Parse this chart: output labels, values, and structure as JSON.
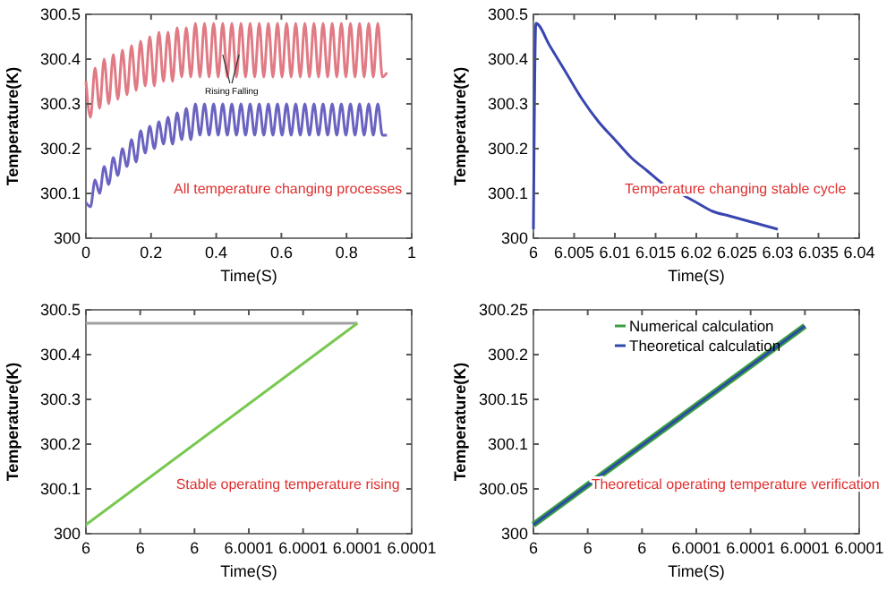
{
  "chart_data": [
    {
      "type": "line",
      "xlabel": "Time(S)",
      "ylabel": "Temperature(K)",
      "xlim": [
        0,
        1
      ],
      "ylim": [
        300,
        300.5
      ],
      "xticks": [
        0,
        0.2,
        0.4,
        0.6,
        0.8,
        1
      ],
      "yticks": [
        300,
        300.1,
        300.2,
        300.3,
        300.4,
        300.5
      ],
      "grid": false,
      "legend": false,
      "annotations": [
        {
          "text": "Rising",
          "x": 0.42,
          "y": 300.41
        },
        {
          "text": "Falling",
          "x": 0.47,
          "y": 300.41
        },
        "All temperature changing processes"
      ],
      "series": [
        {
          "color": "#e07a84",
          "x": [
            0,
            0.014,
            0.028,
            0.042,
            0.056,
            0.07,
            0.084,
            0.098,
            0.112,
            0.126,
            0.14,
            0.154,
            0.168,
            0.182,
            0.196,
            0.21,
            0.224,
            0.238,
            0.252,
            0.266,
            0.28,
            0.294,
            0.308,
            0.322,
            0.336,
            0.35,
            0.364,
            0.378,
            0.392,
            0.406,
            0.42,
            0.434,
            0.448,
            0.462,
            0.476,
            0.49,
            0.504,
            0.518,
            0.532,
            0.546,
            0.56,
            0.574,
            0.588,
            0.602,
            0.616,
            0.63,
            0.644,
            0.658,
            0.672,
            0.686,
            0.7,
            0.714,
            0.728,
            0.742,
            0.756,
            0.77,
            0.784,
            0.798,
            0.812,
            0.826,
            0.84,
            0.854,
            0.868,
            0.882,
            0.896,
            0.91,
            0.924
          ],
          "values": [
            300.35,
            300.27,
            300.38,
            300.29,
            300.4,
            300.3,
            300.41,
            300.31,
            300.42,
            300.32,
            300.43,
            300.33,
            300.44,
            300.34,
            300.45,
            300.34,
            300.46,
            300.35,
            300.46,
            300.35,
            300.47,
            300.36,
            300.47,
            300.36,
            300.48,
            300.36,
            300.48,
            300.36,
            300.48,
            300.36,
            300.48,
            300.36,
            300.48,
            300.36,
            300.48,
            300.36,
            300.48,
            300.36,
            300.48,
            300.36,
            300.48,
            300.36,
            300.48,
            300.36,
            300.48,
            300.36,
            300.48,
            300.36,
            300.48,
            300.36,
            300.48,
            300.36,
            300.48,
            300.36,
            300.48,
            300.36,
            300.48,
            300.36,
            300.48,
            300.36,
            300.48,
            300.36,
            300.48,
            300.36,
            300.48,
            300.36,
            300.37
          ]
        },
        {
          "color": "#6a64c0",
          "x": [
            0,
            0.014,
            0.028,
            0.042,
            0.056,
            0.07,
            0.084,
            0.098,
            0.112,
            0.126,
            0.14,
            0.154,
            0.168,
            0.182,
            0.196,
            0.21,
            0.224,
            0.238,
            0.252,
            0.266,
            0.28,
            0.294,
            0.308,
            0.322,
            0.336,
            0.35,
            0.364,
            0.378,
            0.392,
            0.406,
            0.42,
            0.434,
            0.448,
            0.462,
            0.476,
            0.49,
            0.504,
            0.518,
            0.532,
            0.546,
            0.56,
            0.574,
            0.588,
            0.602,
            0.616,
            0.63,
            0.644,
            0.658,
            0.672,
            0.686,
            0.7,
            0.714,
            0.728,
            0.742,
            0.756,
            0.77,
            0.784,
            0.798,
            0.812,
            0.826,
            0.84,
            0.854,
            0.868,
            0.882,
            0.896,
            0.91,
            0.924
          ],
          "values": [
            300.08,
            300.07,
            300.13,
            300.1,
            300.16,
            300.12,
            300.18,
            300.14,
            300.2,
            300.16,
            300.22,
            300.17,
            300.24,
            300.19,
            300.25,
            300.2,
            300.26,
            300.21,
            300.27,
            300.21,
            300.28,
            300.22,
            300.29,
            300.22,
            300.3,
            300.23,
            300.3,
            300.23,
            300.3,
            300.23,
            300.3,
            300.23,
            300.3,
            300.23,
            300.3,
            300.23,
            300.3,
            300.23,
            300.3,
            300.23,
            300.3,
            300.23,
            300.3,
            300.23,
            300.3,
            300.23,
            300.3,
            300.23,
            300.3,
            300.23,
            300.3,
            300.23,
            300.3,
            300.23,
            300.3,
            300.23,
            300.3,
            300.23,
            300.3,
            300.23,
            300.3,
            300.23,
            300.3,
            300.23,
            300.3,
            300.23,
            300.23
          ]
        }
      ]
    },
    {
      "type": "line",
      "xlabel": "Time(S)",
      "ylabel": "Temperature(K)",
      "xlim": [
        6,
        6.04
      ],
      "ylim": [
        300,
        300.5
      ],
      "xticks": [
        6,
        6.005,
        6.01,
        6.015,
        6.02,
        6.025,
        6.03,
        6.035,
        6.04
      ],
      "yticks": [
        300,
        300.1,
        300.2,
        300.3,
        300.4,
        300.5
      ],
      "grid": false,
      "legend": false,
      "annotations": [
        "Temperature changing stable cycle"
      ],
      "series": [
        {
          "color": "#3a46b0",
          "x": [
            6,
            6.0003,
            6.002,
            6.004,
            6.006,
            6.008,
            6.01,
            6.012,
            6.014,
            6.016,
            6.018,
            6.02,
            6.022,
            6.024,
            6.026,
            6.028,
            6.03
          ],
          "values": [
            300.02,
            300.48,
            300.43,
            300.37,
            300.31,
            300.26,
            300.22,
            300.18,
            300.15,
            300.12,
            300.1,
            300.08,
            300.06,
            300.05,
            300.04,
            300.03,
            300.02
          ]
        }
      ]
    },
    {
      "type": "line",
      "xlabel": "Time(S)",
      "ylabel": "Temperature(K)",
      "xlim": [
        6,
        6.00012
      ],
      "ylim": [
        300,
        300.5
      ],
      "xticks": [
        {
          "value": 6,
          "label": "6"
        },
        {
          "value": 6.00002,
          "label": "6"
        },
        {
          "value": 6.00004,
          "label": "6"
        },
        {
          "value": 6.00006,
          "label": "6.0001"
        },
        {
          "value": 6.00008,
          "label": "6.0001"
        },
        {
          "value": 6.0001,
          "label": "6.0001"
        },
        {
          "value": 6.00012,
          "label": "6.0001"
        }
      ],
      "yticks": [
        300,
        300.1,
        300.2,
        300.3,
        300.4,
        300.5
      ],
      "grid": false,
      "legend": false,
      "annotations": [
        "Stable operating temperature rising"
      ],
      "series": [
        {
          "color": "#a0a0a0",
          "x": [
            6,
            6.0001
          ],
          "values": [
            300.47,
            300.47
          ]
        },
        {
          "color": "#78c850",
          "x": [
            6,
            6.0001
          ],
          "values": [
            300.02,
            300.47
          ]
        }
      ]
    },
    {
      "type": "line",
      "xlabel": "Time(S)",
      "ylabel": "Temperature(K)",
      "xlim": [
        6,
        6.00012
      ],
      "ylim": [
        300,
        300.25
      ],
      "xticks": [
        {
          "value": 6,
          "label": "6"
        },
        {
          "value": 6.00002,
          "label": "6"
        },
        {
          "value": 6.00004,
          "label": "6"
        },
        {
          "value": 6.00006,
          "label": "6.0001"
        },
        {
          "value": 6.00008,
          "label": "6.0001"
        },
        {
          "value": 6.0001,
          "label": "6.0001"
        },
        {
          "value": 6.00012,
          "label": "6.0001"
        }
      ],
      "yticks": [
        300,
        300.05,
        300.1,
        300.15,
        300.2,
        300.25
      ],
      "grid": false,
      "legend": "top",
      "annotations": [
        "Theoretical operating temperature verification"
      ],
      "series": [
        {
          "name": "Numerical calculation",
          "color": "#3aa040",
          "x": [
            6,
            6.0001
          ],
          "values": [
            300.01,
            300.232
          ]
        },
        {
          "name": "Theoretical calculation",
          "color": "#2c4aa8",
          "x": [
            6,
            6.0001
          ],
          "values": [
            300.01,
            300.232
          ]
        }
      ]
    }
  ]
}
